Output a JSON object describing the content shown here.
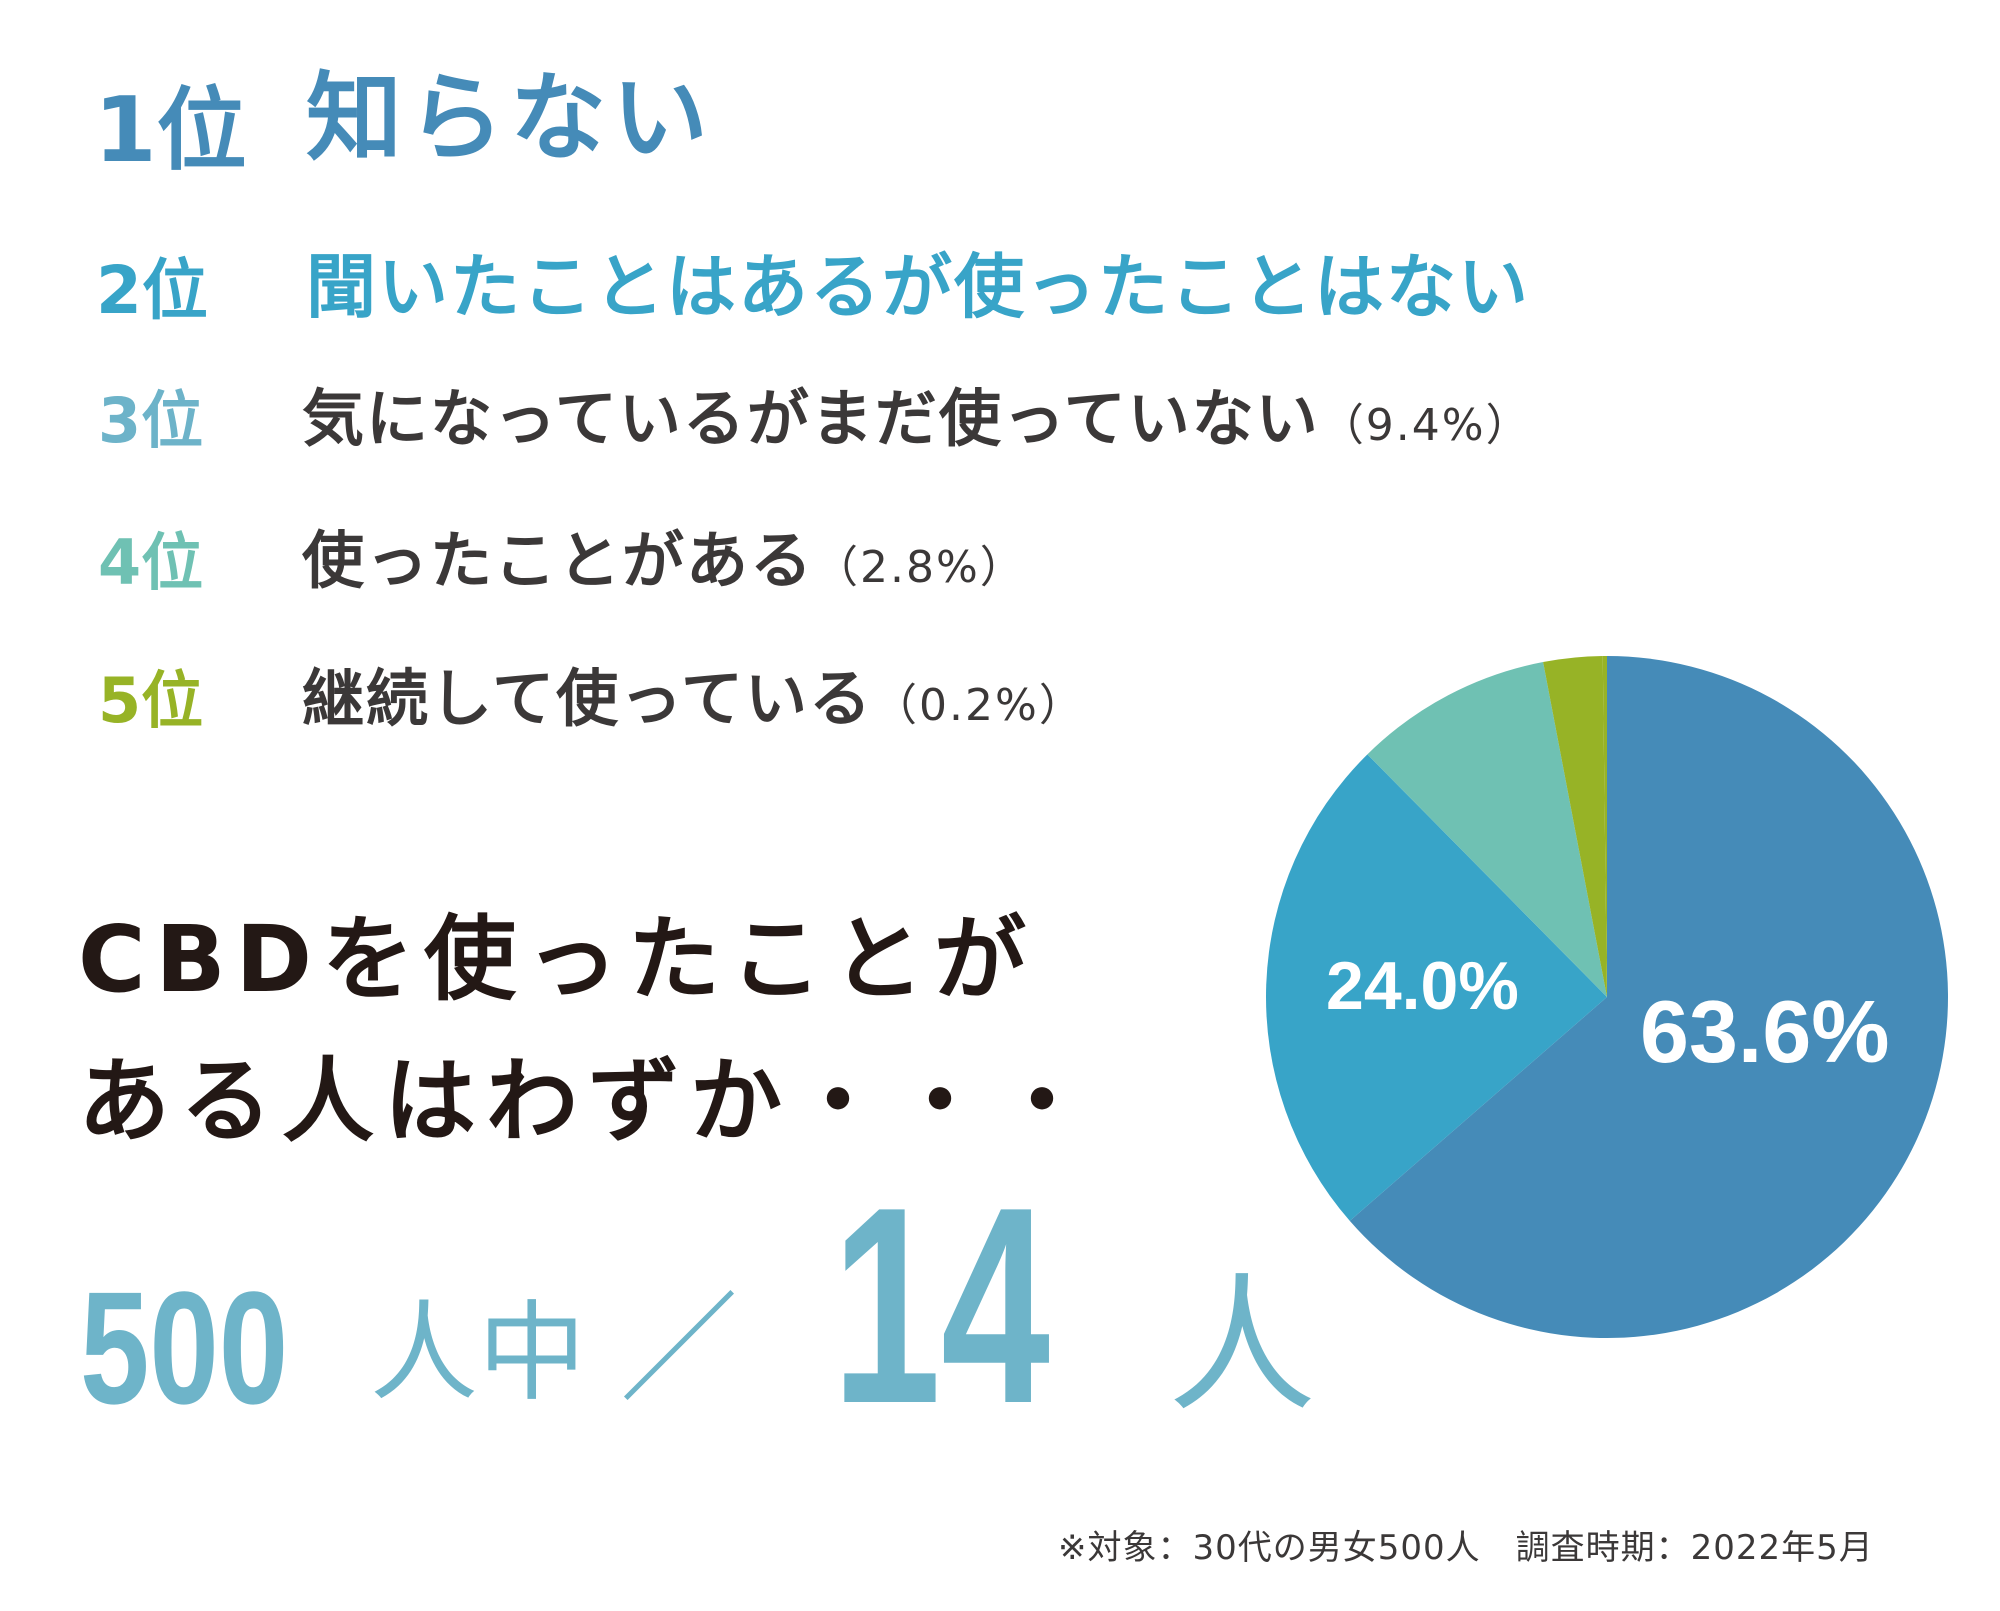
{
  "ranking": [
    {
      "rank": "1位",
      "label": "知らない",
      "pct": "",
      "color": "#458bb8"
    },
    {
      "rank": "2位",
      "label": "聞いたことはあるが使ったことはない",
      "pct": "",
      "color": "#38a4c8"
    },
    {
      "rank": "3位",
      "label": "気になっているがまだ使っていない",
      "pct": "（9.4%）",
      "color": "#6db3c9"
    },
    {
      "rank": "4位",
      "label": "使ったことがある",
      "pct": "（2.8%）",
      "color": "#6fc1b3"
    },
    {
      "rank": "5位",
      "label": "継続して使っている",
      "pct": "（0.2%）",
      "color": "#97b326"
    }
  ],
  "headline": {
    "line1": "CBDを使ったことが",
    "line2": "ある人はわずか・・・"
  },
  "stat": {
    "total_number": "500",
    "total_unit": "人中",
    "separator": "／",
    "count_number": "14",
    "count_unit": "人"
  },
  "footer": "※対象：30代の男女500人　調査時期：2022年5月",
  "chart_data": {
    "type": "pie",
    "title": "",
    "start_angle": "12 o'clock, clockwise",
    "categories": [
      "知らない",
      "聞いたことはあるが使ったことはない",
      "気になっているがまだ使っていない",
      "使ったことがある",
      "継続して使っている"
    ],
    "values": [
      63.6,
      24.0,
      9.4,
      2.8,
      0.2
    ],
    "unit": "%",
    "colors": [
      "#458bb8",
      "#38a4c8",
      "#6fc1b3",
      "#97b326",
      "#97b326"
    ],
    "data_labels": [
      "63.6%",
      "24.0%",
      "",
      "",
      ""
    ],
    "legend": "none (ranking list used as legend)"
  }
}
